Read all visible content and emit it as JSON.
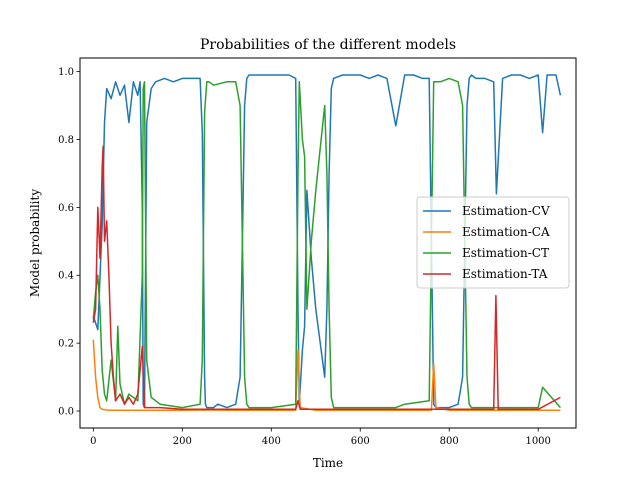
{
  "chart_data": {
    "type": "line",
    "title": "Probabilities of the different models",
    "xlabel": "Time",
    "ylabel": "Model probability",
    "xlim": [
      -30,
      1085
    ],
    "ylim": [
      -0.05,
      1.04
    ],
    "xticks": [
      0,
      200,
      400,
      600,
      800,
      1000
    ],
    "yticks": [
      0.0,
      0.2,
      0.4,
      0.6,
      0.8,
      1.0
    ],
    "xtick_labels": [
      "0",
      "200",
      "400",
      "600",
      "800",
      "1000"
    ],
    "ytick_labels": [
      "0.0",
      "0.2",
      "0.4",
      "0.6",
      "0.8",
      "1.0"
    ],
    "legend_position": "center-right",
    "grid": false,
    "series": [
      {
        "name": "Estimation-CV",
        "color": "#1f77b4",
        "x": [
          0,
          10,
          20,
          25,
          30,
          40,
          50,
          60,
          70,
          80,
          90,
          100,
          105,
          110,
          112,
          115,
          120,
          130,
          140,
          160,
          180,
          200,
          220,
          240,
          245,
          250,
          252,
          255,
          260,
          270,
          280,
          300,
          320,
          330,
          335,
          340,
          345,
          350,
          360,
          380,
          400,
          420,
          440,
          455,
          460,
          463,
          470,
          475,
          480,
          490,
          500,
          520,
          525,
          530,
          535,
          540,
          560,
          580,
          600,
          620,
          640,
          660,
          680,
          700,
          720,
          740,
          755,
          760,
          765,
          770,
          780,
          800,
          820,
          830,
          835,
          840,
          845,
          850,
          860,
          880,
          900,
          906,
          920,
          940,
          960,
          980,
          1000,
          1010,
          1020,
          1040,
          1050
        ],
        "y": [
          0.28,
          0.24,
          0.55,
          0.85,
          0.95,
          0.92,
          0.97,
          0.93,
          0.96,
          0.85,
          0.97,
          0.93,
          0.97,
          0.6,
          0.02,
          0.01,
          0.85,
          0.95,
          0.97,
          0.98,
          0.97,
          0.98,
          0.98,
          0.98,
          0.82,
          0.1,
          0.02,
          0.01,
          0.01,
          0.01,
          0.02,
          0.01,
          0.02,
          0.1,
          0.5,
          0.9,
          0.98,
          0.99,
          0.99,
          0.99,
          0.99,
          0.99,
          0.99,
          0.98,
          0.3,
          0.02,
          0.18,
          0.25,
          0.65,
          0.45,
          0.3,
          0.1,
          0.3,
          0.7,
          0.95,
          0.98,
          0.99,
          0.99,
          0.99,
          0.98,
          0.99,
          0.98,
          0.84,
          0.99,
          0.99,
          0.98,
          0.98,
          0.5,
          0.02,
          0.01,
          0.01,
          0.01,
          0.02,
          0.1,
          0.5,
          0.9,
          0.98,
          0.99,
          0.98,
          0.98,
          0.97,
          0.64,
          0.98,
          0.99,
          0.99,
          0.98,
          0.99,
          0.82,
          0.99,
          0.99,
          0.93
        ]
      },
      {
        "name": "Estimation-CA",
        "color": "#ff7f0e",
        "x": [
          0,
          5,
          10,
          15,
          20,
          30,
          40,
          50,
          100,
          200,
          250,
          300,
          400,
          455,
          460,
          465,
          500,
          600,
          760,
          765,
          770,
          800,
          900,
          1000,
          1050
        ],
        "y": [
          0.21,
          0.1,
          0.04,
          0.01,
          0.005,
          0.003,
          0.002,
          0.002,
          0.002,
          0.002,
          0.003,
          0.002,
          0.002,
          0.002,
          0.18,
          0.01,
          0.002,
          0.002,
          0.002,
          0.14,
          0.01,
          0.002,
          0.002,
          0.002,
          0.002
        ]
      },
      {
        "name": "Estimation-CT",
        "color": "#2ca02c",
        "x": [
          0,
          5,
          10,
          15,
          20,
          25,
          30,
          40,
          50,
          55,
          60,
          70,
          80,
          100,
          110,
          112,
          115,
          120,
          130,
          150,
          200,
          240,
          245,
          250,
          255,
          260,
          270,
          300,
          320,
          330,
          335,
          340,
          345,
          350,
          400,
          455,
          460,
          463,
          470,
          475,
          480,
          490,
          500,
          520,
          525,
          530,
          535,
          540,
          600,
          680,
          700,
          755,
          760,
          765,
          770,
          780,
          800,
          820,
          830,
          835,
          840,
          845,
          850,
          900,
          1000,
          1010,
          1050
        ],
        "y": [
          0.27,
          0.35,
          0.4,
          0.3,
          0.12,
          0.05,
          0.03,
          0.15,
          0.03,
          0.25,
          0.08,
          0.02,
          0.05,
          0.03,
          0.4,
          0.95,
          0.97,
          0.15,
          0.04,
          0.02,
          0.01,
          0.02,
          0.15,
          0.88,
          0.97,
          0.97,
          0.96,
          0.97,
          0.97,
          0.9,
          0.5,
          0.1,
          0.02,
          0.01,
          0.01,
          0.02,
          0.7,
          0.97,
          0.8,
          0.75,
          0.3,
          0.5,
          0.65,
          0.9,
          0.7,
          0.3,
          0.04,
          0.01,
          0.01,
          0.01,
          0.02,
          0.03,
          0.5,
          0.97,
          0.97,
          0.97,
          0.98,
          0.97,
          0.9,
          0.5,
          0.1,
          0.02,
          0.01,
          0.01,
          0.01,
          0.07,
          0.01
        ]
      },
      {
        "name": "Estimation-TA",
        "color": "#d62728",
        "x": [
          0,
          5,
          10,
          15,
          20,
          22,
          25,
          30,
          35,
          40,
          45,
          50,
          60,
          70,
          80,
          90,
          100,
          110,
          115,
          120,
          130,
          150,
          200,
          250,
          300,
          350,
          400,
          455,
          460,
          465,
          500,
          600,
          700,
          800,
          900,
          905,
          910,
          1000,
          1050
        ],
        "y": [
          0.26,
          0.3,
          0.6,
          0.45,
          0.72,
          0.78,
          0.5,
          0.56,
          0.4,
          0.2,
          0.1,
          0.03,
          0.05,
          0.02,
          0.04,
          0.02,
          0.05,
          0.19,
          0.01,
          0.01,
          0.01,
          0.01,
          0.005,
          0.005,
          0.005,
          0.005,
          0.005,
          0.005,
          0.03,
          0.005,
          0.005,
          0.005,
          0.005,
          0.005,
          0.005,
          0.34,
          0.005,
          0.005,
          0.04
        ]
      }
    ]
  }
}
